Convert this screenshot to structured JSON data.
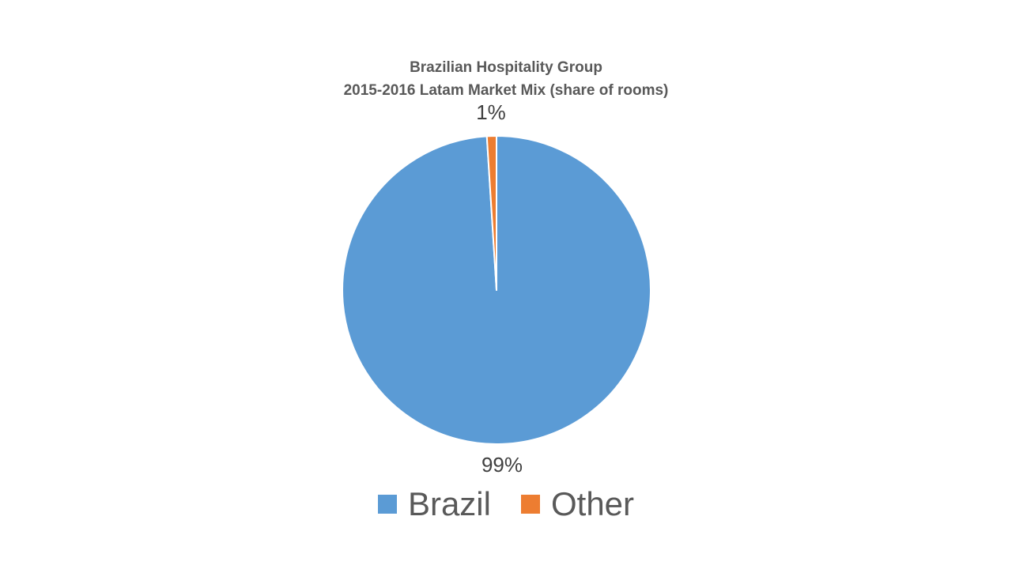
{
  "chart_data": {
    "type": "pie",
    "title": "Brazilian Hospitality Group",
    "subtitle": "2015-2016 Latam Market Mix (share of rooms)",
    "categories": [
      "Brazil",
      "Other"
    ],
    "values": [
      99,
      1
    ],
    "data_labels": [
      "99%",
      "1%"
    ],
    "colors": [
      "#5B9BD5",
      "#ED7D31"
    ],
    "start_angle_deg": 0,
    "direction": "clockwise",
    "legend": {
      "placement": "bottom",
      "entries": [
        "Brazil",
        "Other"
      ]
    }
  }
}
